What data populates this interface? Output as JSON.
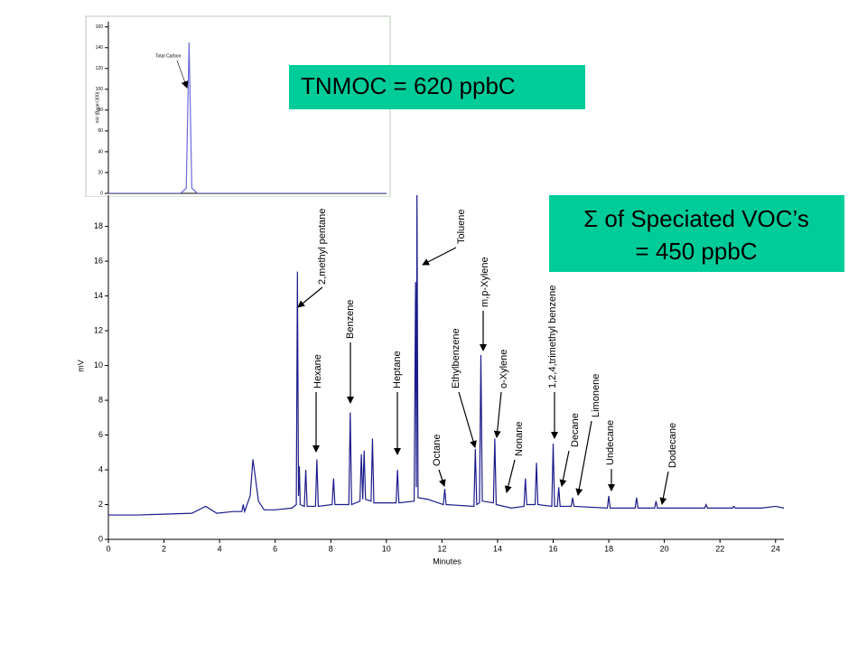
{
  "chart_data": [
    {
      "type": "line",
      "annotations": [
        "Total Carbon"
      ],
      "y_label": "mV (Base=300)",
      "color": "#6a6ad8",
      "xlim": [
        0,
        10
      ],
      "ylim": [
        0,
        165
      ],
      "yticks": [
        0,
        20,
        40,
        60,
        80,
        100,
        120,
        140,
        160
      ],
      "x": [
        0,
        2.6,
        2.8,
        2.9,
        3.0,
        3.2,
        10
      ],
      "values": [
        0,
        0,
        5,
        145,
        5,
        0,
        0
      ]
    },
    {
      "type": "line",
      "x_label": "Minutes",
      "y_label": "mV",
      "color": "#1c1c8a",
      "annotations": [
        "2,methyl pentane",
        "Hexane",
        "Benzene",
        "Heptane",
        "Toluene",
        "Octane",
        "Ethylbenzene",
        "m,p-Xylene",
        "o-Xylene",
        "Nonane",
        "1,2,4,trimethyl benzene",
        "Decane",
        "Limonene",
        "Undecane",
        "Dodecane"
      ],
      "xlim": [
        0,
        24.3
      ],
      "ylim": [
        0,
        19.8
      ],
      "xticks": [
        0,
        2,
        4,
        6,
        8,
        10,
        12,
        14,
        16,
        18,
        20,
        22,
        24
      ],
      "yticks": [
        0,
        2,
        4,
        6,
        8,
        10,
        12,
        14,
        16,
        18
      ],
      "x": [
        0,
        1,
        2,
        3.0,
        3.5,
        3.9,
        4.5,
        4.8,
        4.85,
        4.9,
        5.1,
        5.2,
        5.4,
        5.6,
        6.0,
        6.6,
        6.76,
        6.8,
        6.84,
        6.87,
        6.9,
        7.05,
        7.1,
        7.15,
        7.45,
        7.5,
        7.55,
        8.05,
        8.1,
        8.15,
        8.65,
        8.7,
        8.75,
        9.05,
        9.1,
        9.15,
        9.2,
        9.25,
        9.45,
        9.5,
        9.55,
        10.0,
        10.35,
        10.4,
        10.45,
        11.0,
        11.05,
        11.08,
        11.1,
        11.14,
        11.5,
        12.05,
        12.1,
        12.15,
        13.15,
        13.2,
        13.25,
        13.35,
        13.4,
        13.45,
        13.85,
        13.9,
        13.95,
        14.5,
        14.95,
        15.0,
        15.05,
        15.35,
        15.4,
        15.45,
        15.95,
        16.0,
        16.05,
        16.15,
        16.2,
        16.25,
        16.65,
        16.7,
        16.75,
        17.95,
        18.0,
        18.05,
        18.95,
        19.0,
        19.05,
        19.65,
        19.7,
        19.75,
        20.5,
        21.45,
        21.5,
        21.55,
        22.45,
        22.5,
        22.55,
        23.5,
        24.0,
        24.3
      ],
      "values": [
        1.4,
        1.4,
        1.45,
        1.5,
        1.9,
        1.5,
        1.6,
        1.6,
        2.0,
        1.6,
        2.5,
        4.6,
        2.2,
        1.7,
        1.7,
        1.8,
        2.0,
        15.4,
        2.5,
        4.2,
        2.0,
        1.9,
        4.0,
        1.9,
        1.9,
        4.6,
        1.9,
        2.0,
        3.5,
        2.0,
        2.0,
        7.3,
        2.0,
        2.2,
        4.9,
        2.3,
        5.1,
        2.3,
        2.2,
        5.8,
        2.1,
        2.1,
        2.1,
        4.0,
        2.1,
        2.2,
        14.8,
        3.0,
        20.2,
        2.4,
        2.3,
        2.0,
        2.9,
        2.0,
        1.9,
        5.2,
        2.0,
        2.1,
        10.6,
        2.2,
        2.1,
        5.8,
        2.0,
        1.8,
        1.9,
        3.5,
        2.0,
        2.0,
        4.4,
        2.0,
        1.9,
        5.5,
        1.9,
        1.9,
        3.0,
        1.9,
        1.9,
        2.4,
        1.9,
        1.8,
        2.5,
        1.8,
        1.8,
        2.4,
        1.8,
        1.8,
        2.2,
        1.8,
        1.8,
        1.8,
        2.0,
        1.8,
        1.8,
        1.9,
        1.8,
        1.8,
        1.9,
        1.8
      ]
    }
  ],
  "callouts": [
    {
      "lines": [
        "TNMOC = 620 ppbC"
      ]
    },
    {
      "lines": [
        "Σ of Speciated VOC’s",
        "= 450 ppbC"
      ]
    }
  ]
}
